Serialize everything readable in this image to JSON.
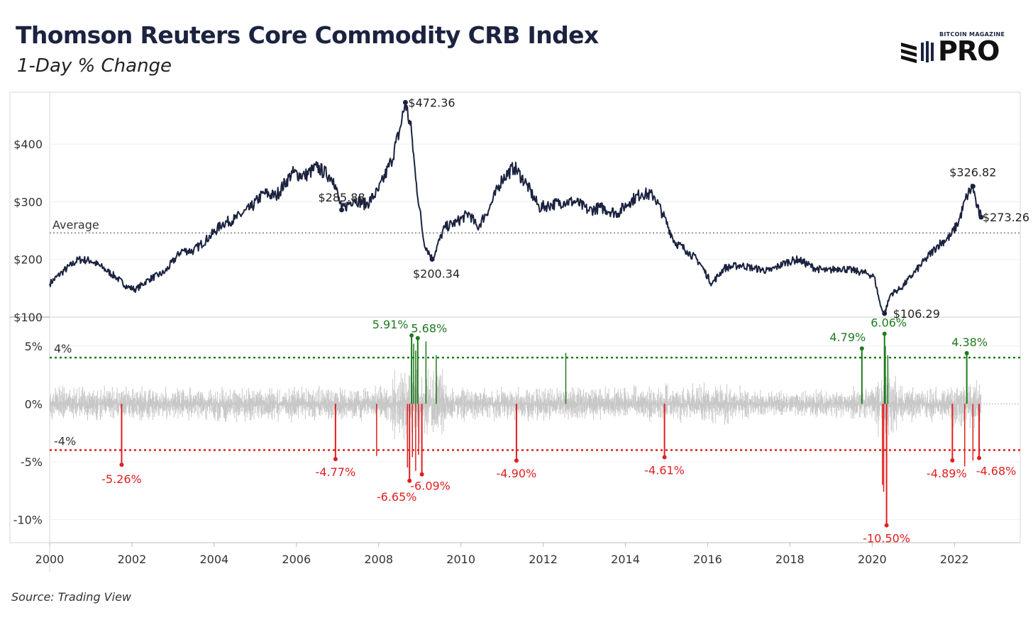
{
  "header": {
    "title": "Thomson Reuters Core Commodity CRB Index",
    "subtitle": "1-Day % Change"
  },
  "footer": {
    "source": "Source: Trading View"
  },
  "logo": {
    "top_text": "BITCOIN MAGAZINE",
    "main_text": "PRO",
    "icon": "stacked-bars-logo-icon"
  },
  "colors": {
    "line": "#1b2340",
    "noise": "#c8c8c8",
    "positive": "#1e7a1e",
    "negative": "#e01e1e",
    "reference": "#999999"
  },
  "chart_data": [
    {
      "type": "line",
      "name": "price",
      "ylim": [
        100,
        490
      ],
      "xlim": [
        2000,
        2023.6
      ],
      "yticks": [
        100,
        200,
        300,
        400
      ],
      "ytick_labels": [
        "$100",
        "$200",
        "$300",
        "$400"
      ],
      "reference_line": {
        "value": 246,
        "label": "Average"
      },
      "series": [
        {
          "x": [
            2000.0,
            2000.3,
            2000.7,
            2001.0,
            2001.3,
            2001.6,
            2001.9,
            2002.1,
            2002.4,
            2002.8,
            2003.2,
            2003.5,
            2003.9,
            2004.2,
            2004.5,
            2004.9,
            2005.2,
            2005.5,
            2005.9,
            2006.2,
            2006.5,
            2006.9,
            2007.1,
            2007.4,
            2007.7,
            2008.0,
            2008.3,
            2008.5,
            2008.65,
            2008.8,
            2008.9,
            2009.1,
            2009.3,
            2009.6,
            2009.9,
            2010.2,
            2010.4,
            2010.7,
            2011.0,
            2011.3,
            2011.6,
            2011.9,
            2012.2,
            2012.5,
            2012.8,
            2013.1,
            2013.4,
            2013.8,
            2014.1,
            2014.4,
            2014.7,
            2014.9,
            2015.2,
            2015.5,
            2015.8,
            2016.1,
            2016.4,
            2016.8,
            2017.1,
            2017.5,
            2017.9,
            2018.2,
            2018.6,
            2018.9,
            2019.2,
            2019.6,
            2019.9,
            2020.05,
            2020.2,
            2020.3,
            2020.45,
            2020.7,
            2021.0,
            2021.3,
            2021.6,
            2021.9,
            2022.1,
            2022.3,
            2022.45,
            2022.55,
            2022.65
          ],
          "y": [
            158,
            178,
            200,
            198,
            185,
            170,
            152,
            148,
            165,
            178,
            215,
            215,
            240,
            262,
            270,
            290,
            315,
            310,
            350,
            345,
            360,
            340,
            285.88,
            305,
            295,
            320,
            370,
            420,
            472.36,
            420,
            340,
            230,
            200.34,
            255,
            265,
            280,
            255,
            290,
            340,
            360,
            330,
            290,
            295,
            300,
            300,
            285,
            290,
            280,
            300,
            315,
            310,
            280,
            230,
            215,
            195,
            158,
            185,
            190,
            185,
            180,
            195,
            200,
            185,
            180,
            185,
            180,
            175,
            170,
            120,
            106.29,
            140,
            150,
            175,
            200,
            225,
            240,
            265,
            310,
            326.82,
            290,
            273.26
          ]
        }
      ],
      "annotations": [
        {
          "x": 2008.65,
          "y": 472.36,
          "label": "$472.36"
        },
        {
          "x": 2007.1,
          "y": 285.88,
          "label": "$285.88"
        },
        {
          "x": 2009.3,
          "y": 200.34,
          "label": "$200.34"
        },
        {
          "x": 2020.3,
          "y": 106.29,
          "label": "$106.29"
        },
        {
          "x": 2022.45,
          "y": 326.82,
          "label": "$326.82"
        },
        {
          "x": 2022.65,
          "y": 273.26,
          "label": "$273.26"
        }
      ]
    },
    {
      "type": "bar",
      "name": "1-day % change",
      "ylim": [
        -12,
        7.5
      ],
      "xlim": [
        2000,
        2023.6
      ],
      "yticks": [
        5,
        0,
        -5,
        -10
      ],
      "ytick_labels": [
        "5%",
        "0%",
        "-5%",
        "-10%"
      ],
      "reference_lines": [
        {
          "value": 4,
          "label": "4%"
        },
        {
          "value": -4,
          "label": "-4%"
        }
      ],
      "annotations": [
        {
          "x": 2008.8,
          "y": 5.91,
          "label": "5.91%"
        },
        {
          "x": 2008.95,
          "y": 5.68,
          "label": "5.68%"
        },
        {
          "x": 2019.75,
          "y": 4.79,
          "label": "4.79%"
        },
        {
          "x": 2020.3,
          "y": 6.06,
          "label": "6.06%"
        },
        {
          "x": 2022.3,
          "y": 4.38,
          "label": "4.38%"
        },
        {
          "x": 2001.75,
          "y": -5.26,
          "label": "-5.26%"
        },
        {
          "x": 2006.95,
          "y": -4.77,
          "label": "-4.77%"
        },
        {
          "x": 2008.75,
          "y": -6.65,
          "label": "-6.65%"
        },
        {
          "x": 2009.05,
          "y": -6.09,
          "label": "-6.09%"
        },
        {
          "x": 2011.35,
          "y": -4.9,
          "label": "-4.90%"
        },
        {
          "x": 2014.95,
          "y": -4.61,
          "label": "-4.61%"
        },
        {
          "x": 2020.35,
          "y": -10.5,
          "label": "-10.50%"
        },
        {
          "x": 2021.95,
          "y": -4.89,
          "label": "-4.89%"
        },
        {
          "x": 2022.6,
          "y": -4.68,
          "label": "-4.68%"
        }
      ]
    }
  ],
  "x_axis": {
    "ticks": [
      2000,
      2002,
      2004,
      2006,
      2008,
      2010,
      2012,
      2014,
      2016,
      2018,
      2020,
      2022
    ],
    "labels": [
      "2000",
      "2002",
      "2004",
      "2006",
      "2008",
      "2010",
      "2012",
      "2014",
      "2016",
      "2018",
      "2020",
      "2022"
    ]
  }
}
